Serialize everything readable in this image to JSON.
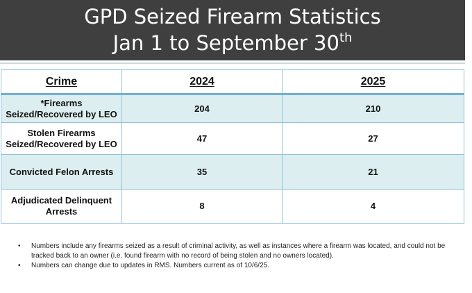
{
  "title": {
    "line1": "GPD Seized Firearm Statistics",
    "line2_main": "Jan 1 to September 30",
    "line2_suffix": "th"
  },
  "table": {
    "headers": [
      "Crime",
      "2024",
      "2025"
    ],
    "rows": [
      {
        "crime": "*Firearms Seized/Recovered by LEO",
        "y2024": "204",
        "y2025": "210"
      },
      {
        "crime": "Stolen Firearms Seized/Recovered by LEO",
        "y2024": "47",
        "y2025": "27"
      },
      {
        "crime": "Convicted Felon Arrests",
        "y2024": "35",
        "y2025": "21"
      },
      {
        "crime": "Adjudicated Delinquent Arrests",
        "y2024": "8",
        "y2025": "4"
      }
    ]
  },
  "notes": [
    "Numbers include any firearms seized as a result of criminal activity, as well as instances where a firearm was located, and could not be tracked back to an owner (i.e. found firearm with no record of being stolen and no owners located).",
    "Numbers can change due to updates in RMS.  Numbers current as of 10/6/25."
  ],
  "bullet_symbol": "•",
  "colors": {
    "title_background": "#3f3f3f",
    "title_text": "#ffffff",
    "table_border": "#8fc2dc",
    "row_shading": "#dceef0"
  }
}
